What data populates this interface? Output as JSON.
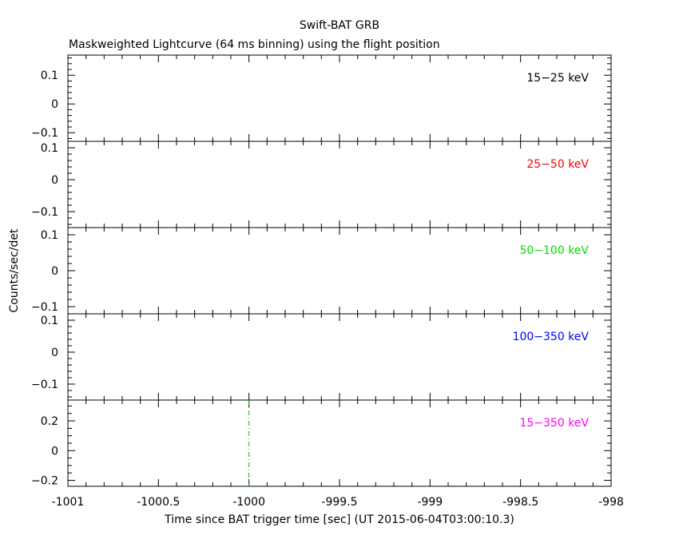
{
  "chart_data": {
    "type": "line",
    "title": "Swift-BAT GRB",
    "subtitle": "Maskweighted Lightcurve (64 ms binning) using the flight position",
    "xlabel": "Time since BAT trigger time [sec] (UT 2015-06-04T03:00:10.3)",
    "ylabel": "Counts/sec/det",
    "xlim": [
      -1001,
      -998
    ],
    "xticks": [
      -1001,
      -1000.5,
      -1000,
      -999.5,
      -999,
      -998.5,
      -998
    ],
    "xtick_labels": [
      "-1001",
      "-1000.5",
      "-1000",
      "-999.5",
      "-999",
      "-998.5",
      "-998"
    ],
    "marker_line": {
      "x": -1000,
      "color": "#00c000",
      "style": "dash-dot"
    },
    "panels": [
      {
        "name": "15-25 keV",
        "label": "15−25 keV",
        "color": "#000000",
        "ylim": [
          -0.13,
          0.17
        ],
        "yticks": [
          0.1,
          0,
          -0.1
        ],
        "ytick_labels": [
          "0.1",
          "0",
          "−0.1"
        ],
        "values": []
      },
      {
        "name": "25-50 keV",
        "label": "25−50 keV",
        "color": "#ff0000",
        "ylim": [
          -0.15,
          0.12
        ],
        "yticks": [
          0.1,
          0,
          -0.1
        ],
        "ytick_labels": [
          "0.1",
          "0",
          "−0.1"
        ],
        "values": []
      },
      {
        "name": "50-100 keV",
        "label": "50−100 keV",
        "color": "#00e000",
        "ylim": [
          -0.12,
          0.12
        ],
        "yticks": [
          0.1,
          0,
          -0.1
        ],
        "ytick_labels": [
          "0.1",
          "0",
          "−0.1"
        ],
        "values": []
      },
      {
        "name": "100-350 keV",
        "label": "100−350 keV",
        "color": "#0000ff",
        "ylim": [
          -0.15,
          0.12
        ],
        "yticks": [
          0.1,
          0,
          -0.1
        ],
        "ytick_labels": [
          "0.1",
          "0",
          "−0.1"
        ],
        "values": []
      },
      {
        "name": "15-350 keV",
        "label": "15−350 keV",
        "color": "#ff00ff",
        "ylim": [
          -0.24,
          0.34
        ],
        "yticks": [
          0.2,
          0,
          -0.2
        ],
        "ytick_labels": [
          "0.2",
          "0",
          "−0.2"
        ],
        "values": []
      }
    ]
  }
}
